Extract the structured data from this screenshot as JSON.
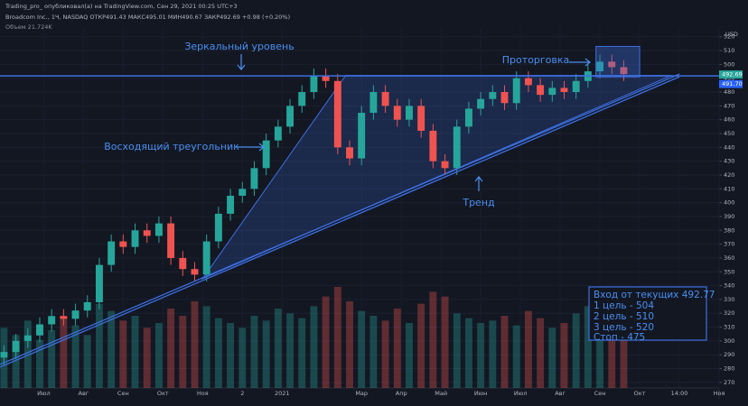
{
  "chart_data": {
    "type": "candlestick",
    "title": "Trading_pro_ опубликовал(а) на TradingView.com, Сен 29, 2021 00:25 UTC+3",
    "subtitle": "Broadcom Inc., 1Ч, NASDAQ  ОТКР491.43 МАКС495.01 МИН490.67 ЗАКР492.69 +0.98 (+0.20%)",
    "volume_label": "Объем 21.724K",
    "y_unit": "USD",
    "up_color": "#26a69a",
    "down_color": "#ef5350",
    "line_color": "#3d6fe0",
    "xlim": [
      -1.1,
      17
    ],
    "xticks": [
      {
        "value": 0,
        "label": "Июл"
      },
      {
        "value": 1,
        "label": "Авг"
      },
      {
        "value": 2,
        "label": "Сен"
      },
      {
        "value": 3,
        "label": "Окт"
      },
      {
        "value": 4,
        "label": "Ноя"
      },
      {
        "value": 5,
        "label": "2"
      },
      {
        "value": 6,
        "label": "2021"
      },
      {
        "value": 8,
        "label": "Мар"
      },
      {
        "value": 9,
        "label": "Апр"
      },
      {
        "value": 10,
        "label": "Май"
      },
      {
        "value": 11,
        "label": "Июн"
      },
      {
        "value": 12,
        "label": "Июл"
      },
      {
        "value": 13,
        "label": "Авг"
      },
      {
        "value": 14,
        "label": "Сен"
      },
      {
        "value": 15,
        "label": "Окт"
      },
      {
        "value": 16,
        "label": "14:00"
      },
      {
        "value": 17,
        "label": "Ноя"
      }
    ],
    "ylim": [
      266,
      527
    ],
    "yticks": [
      270,
      280,
      290,
      300,
      310,
      320,
      330,
      340,
      350,
      360,
      370,
      380,
      390,
      400,
      410,
      420,
      430,
      440,
      450,
      460,
      470,
      480,
      490,
      500,
      510,
      520
    ],
    "vlim": [
      0,
      150
    ],
    "series": [
      {
        "x": [
          -1.0,
          -0.7,
          -0.4,
          -0.1,
          0.2,
          0.5,
          0.8,
          1.1,
          1.4,
          1.7,
          2.0,
          2.3,
          2.6,
          2.9,
          3.2,
          3.5,
          3.8,
          4.1,
          4.4,
          4.7,
          5.0,
          5.3,
          5.6,
          5.9,
          6.2,
          6.5,
          6.8,
          7.1,
          7.4,
          7.7,
          8.0,
          8.3,
          8.6,
          8.9,
          9.2,
          9.5,
          9.8,
          10.1,
          10.4,
          10.7,
          11.0,
          11.3,
          11.6,
          11.9,
          12.2,
          12.5,
          12.8,
          13.1,
          13.4,
          13.7,
          14.0,
          14.3,
          14.6
        ],
        "open": [
          288,
          292,
          300,
          304,
          312,
          318,
          316,
          322,
          328,
          355,
          372,
          368,
          380,
          376,
          385,
          360,
          352,
          348,
          372,
          392,
          405,
          410,
          425,
          445,
          455,
          470,
          480,
          492,
          488,
          440,
          432,
          465,
          480,
          470,
          460,
          470,
          452,
          430,
          425,
          455,
          468,
          475,
          480,
          472,
          490,
          485,
          478,
          483,
          480,
          488,
          495,
          502,
          498
        ],
        "high": [
          297,
          305,
          309,
          317,
          323,
          323,
          327,
          333,
          360,
          377,
          377,
          385,
          385,
          390,
          390,
          365,
          357,
          377,
          397,
          410,
          415,
          430,
          450,
          460,
          475,
          485,
          497,
          497,
          493,
          445,
          470,
          485,
          485,
          475,
          475,
          475,
          457,
          435,
          460,
          473,
          480,
          485,
          485,
          495,
          495,
          490,
          488,
          488,
          493,
          500,
          507,
          507,
          503
        ],
        "low": [
          283,
          287,
          295,
          299,
          307,
          311,
          311,
          317,
          323,
          350,
          363,
          363,
          371,
          371,
          355,
          347,
          343,
          343,
          367,
          387,
          400,
          405,
          420,
          440,
          450,
          465,
          475,
          483,
          435,
          427,
          427,
          460,
          465,
          455,
          455,
          447,
          425,
          420,
          420,
          450,
          463,
          470,
          467,
          467,
          480,
          473,
          473,
          475,
          475,
          483,
          490,
          493,
          488
        ],
        "close": [
          292,
          300,
          304,
          312,
          318,
          316,
          322,
          328,
          355,
          372,
          368,
          380,
          376,
          385,
          360,
          352,
          348,
          372,
          392,
          405,
          410,
          425,
          445,
          455,
          470,
          480,
          492,
          488,
          440,
          432,
          465,
          480,
          470,
          460,
          470,
          452,
          430,
          425,
          455,
          468,
          475,
          480,
          472,
          490,
          485,
          478,
          483,
          480,
          488,
          495,
          502,
          498,
          493
        ],
        "volume": [
          25,
          22,
          28,
          20,
          24,
          30,
          26,
          22,
          35,
          32,
          28,
          30,
          25,
          27,
          33,
          30,
          36,
          34,
          29,
          27,
          25,
          30,
          28,
          33,
          31,
          29,
          34,
          38,
          42,
          36,
          32,
          30,
          28,
          33,
          27,
          35,
          40,
          38,
          31,
          29,
          27,
          28,
          30,
          26,
          32,
          29,
          25,
          27,
          31,
          34,
          36,
          30,
          22
        ]
      }
    ],
    "price_labels": [
      {
        "value": 492.69,
        "label": "492.69"
      },
      {
        "value": 491.7,
        "label": "491.70"
      }
    ],
    "trendline": {
      "x": [
        -1.1,
        16
      ],
      "y": [
        283,
        493
      ]
    },
    "triangle": {
      "x": [
        4.0,
        7.6,
        15.8
      ],
      "y": [
        345,
        492,
        492
      ]
    },
    "range_box": {
      "x": [
        13.9,
        15.0
      ],
      "y": [
        491,
        513
      ]
    },
    "annotations": [
      "Зеркальный уровень",
      "Восходящий треугольник",
      "Тренд",
      "Проторговка"
    ],
    "plan": [
      "Вход от текущих 492.77",
      "1 цель - 504",
      "2 цель - 510",
      "3 цель - 520",
      "Стоп - 475"
    ]
  }
}
